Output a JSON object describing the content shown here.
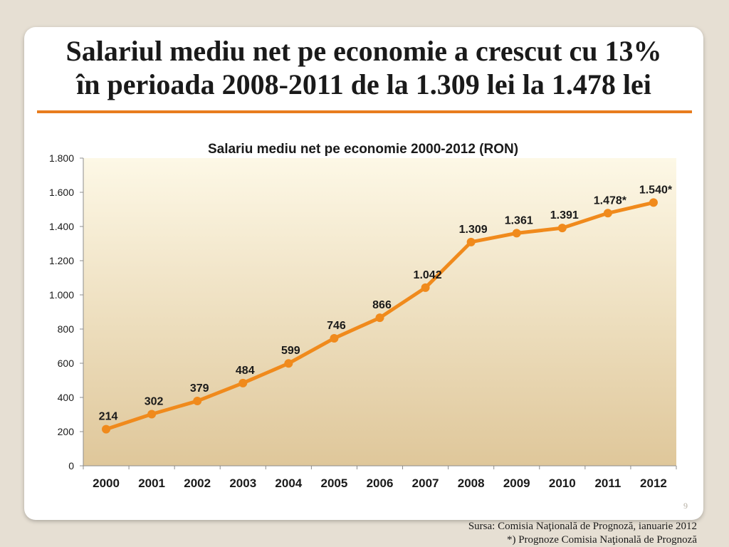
{
  "slide": {
    "title_line1": "Salariul mediu net pe economie a crescut cu 13%",
    "title_line2": "în perioada 2008-2011 de la 1.309 lei la 1.478 lei",
    "page_number": "9",
    "source_line1": "Sursa: Comisia Naţională de Prognoză,  ianuarie 2012",
    "source_line2": "*) Prognoze Comisia Naţională de Prognoză"
  },
  "chart_data": {
    "type": "line",
    "title": "Salariu mediu net pe economie 2000-2012 (RON)",
    "xlabel": "",
    "ylabel": "",
    "categories": [
      "2000",
      "2001",
      "2002",
      "2003",
      "2004",
      "2005",
      "2006",
      "2007",
      "2008",
      "2009",
      "2010",
      "2011",
      "2012"
    ],
    "series": [
      {
        "name": "Salariu mediu net",
        "values": [
          214,
          302,
          379,
          484,
          599,
          746,
          866,
          1042,
          1309,
          1361,
          1391,
          1478,
          1540
        ],
        "labels": [
          "214",
          "302",
          "379",
          "484",
          "599",
          "746",
          "866",
          "1.042",
          "1.309",
          "1.361",
          "1.391",
          "1.478*",
          "1.540*"
        ]
      }
    ],
    "ylim": [
      0,
      1800
    ],
    "yticks": [
      0,
      200,
      400,
      600,
      800,
      1000,
      1200,
      1400,
      1600,
      1800
    ],
    "ytick_labels": [
      "0",
      "200",
      "400",
      "600",
      "800",
      "1.000",
      "1.200",
      "1.400",
      "1.600",
      "1.800"
    ],
    "grid": false,
    "colors": {
      "line": "#f08a1c",
      "plot_top": "#fdf8e6",
      "plot_bottom": "#dfc79a"
    }
  }
}
